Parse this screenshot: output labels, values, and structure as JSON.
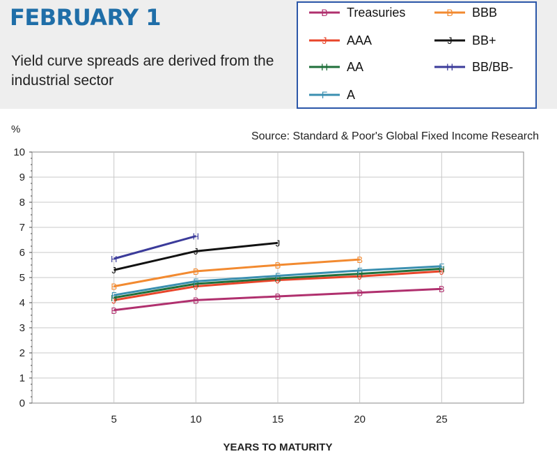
{
  "header": {
    "title": "FEBRUARY 1",
    "subtitle": "Yield curve spreads are derived from the industrial sector"
  },
  "source": "Source: Standard & Poor's Global Fixed Income Research",
  "colors": {
    "title": "#1f6ea8",
    "legend_border": "#2a56a8",
    "header_band": "#eeeeee"
  },
  "chart_data": {
    "type": "line",
    "xlabel": "YEARS TO MATURITY",
    "ylabel": "%",
    "xlim": [
      0,
      30
    ],
    "ylim": [
      0,
      10
    ],
    "x_ticks": [
      5,
      10,
      15,
      20,
      25
    ],
    "y_ticks": [
      0,
      1,
      2,
      3,
      4,
      5,
      6,
      7,
      8,
      9,
      10
    ],
    "grid": true,
    "legend": "top-right",
    "series": [
      {
        "name": "Treasuries",
        "color": "#b0306e",
        "marker": "B",
        "x": [
          5,
          10,
          15,
          20,
          25
        ],
        "y": [
          3.7,
          4.1,
          4.25,
          4.4,
          4.55
        ]
      },
      {
        "name": "AAA",
        "color": "#e8452a",
        "marker": "J",
        "x": [
          5,
          10,
          15,
          20,
          25
        ],
        "y": [
          4.1,
          4.65,
          4.9,
          5.05,
          5.25
        ]
      },
      {
        "name": "AA",
        "color": "#1f6f3a",
        "marker": "H",
        "x": [
          5,
          10,
          15,
          20,
          25
        ],
        "y": [
          4.2,
          4.75,
          4.97,
          5.15,
          5.35
        ]
      },
      {
        "name": "A",
        "color": "#3a8fb0",
        "marker": "F",
        "x": [
          5,
          10,
          15,
          20,
          25
        ],
        "y": [
          4.3,
          4.85,
          5.07,
          5.28,
          5.45
        ]
      },
      {
        "name": "BBB",
        "color": "#f28a30",
        "marker": "B",
        "x": [
          5,
          10,
          15,
          20
        ],
        "y": [
          4.65,
          5.25,
          5.5,
          5.72
        ]
      },
      {
        "name": "BB+",
        "color": "#111111",
        "marker": "J",
        "x": [
          5,
          10,
          15
        ],
        "y": [
          5.3,
          6.05,
          6.38
        ]
      },
      {
        "name": "BB/BB-",
        "color": "#3b3b9a",
        "marker": "H",
        "x": [
          5,
          10
        ],
        "y": [
          5.75,
          6.65
        ]
      }
    ]
  }
}
